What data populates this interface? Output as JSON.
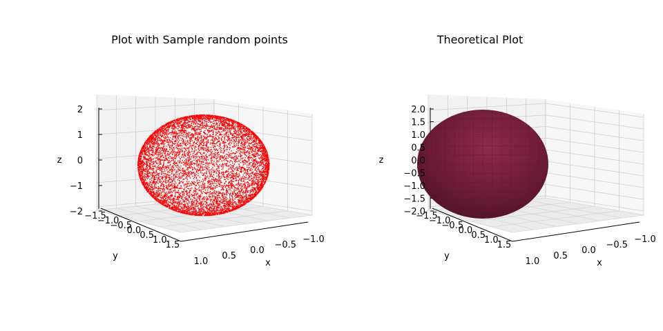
{
  "chart_data": [
    {
      "type": "scatter",
      "projection": "3d",
      "title": "Plot with Sample random points",
      "xlabel": "x",
      "ylabel": "y",
      "zlabel": "z",
      "xlim": [
        -1.0,
        1.0
      ],
      "ylim": [
        -1.5,
        1.5
      ],
      "zlim": [
        -2,
        2
      ],
      "xticks": [
        "1.0",
        "0.5",
        "0.0",
        "−0.5",
        "−1.0"
      ],
      "yticks": [
        "−1.5",
        "−1.0",
        "−0.5",
        "0.0",
        "0.5",
        "1.0",
        "1.5"
      ],
      "zticks": [
        "2",
        "1",
        "0",
        "−1",
        "−2"
      ],
      "series": [
        {
          "color": "#ff0000",
          "shape": "ellipsoid",
          "semi_axes": {
            "x": 1,
            "y": 1.5,
            "z": 2
          },
          "sampled_points": 8000
        }
      ],
      "grid": true
    },
    {
      "type": "surface",
      "projection": "3d",
      "title": "Theoretical Plot",
      "xlabel": "x",
      "ylabel": "y",
      "zlabel": "z",
      "xlim": [
        -1.0,
        1.0
      ],
      "ylim": [
        -1.5,
        1.5
      ],
      "zlim": [
        -2.0,
        2.0
      ],
      "xticks": [
        "1.0",
        "0.5",
        "0.0",
        "−0.5",
        "−1.0"
      ],
      "yticks": [
        "−1.5",
        "−1.0",
        "−0.5",
        "0.0",
        "0.5",
        "1.0",
        "1.5"
      ],
      "zticks": [
        "2.0",
        "1.5",
        "1.0",
        "0.5",
        "0.0",
        "−0.5",
        "−1.0",
        "−1.5",
        "−2.0"
      ],
      "series": [
        {
          "color": "#7b1f3e",
          "shape": "ellipsoid",
          "semi_axes": {
            "x": 1,
            "y": 1.5,
            "z": 2
          }
        }
      ],
      "grid": true
    }
  ]
}
